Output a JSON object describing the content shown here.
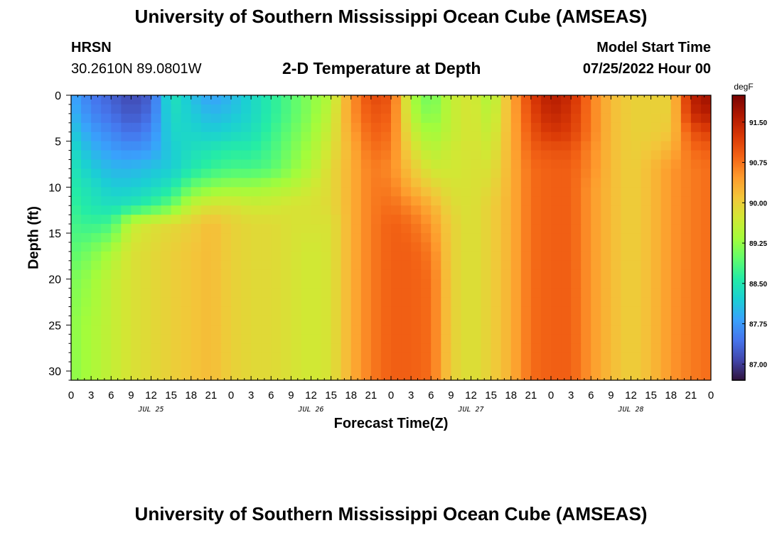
{
  "header": {
    "title": "University of Southern Mississippi Ocean Cube (AMSEAS)",
    "station": "HRSN",
    "coords": "30.2610N  89.0801W",
    "plot_title": "2-D Temperature at Depth",
    "model_start_label": "Model Start Time",
    "model_start_value": "07/25/2022 Hour 00"
  },
  "footer": {
    "title": "University of Southern Mississippi Ocean Cube (AMSEAS)"
  },
  "chart_data": {
    "type": "heatmap",
    "title": "2-D Temperature at Depth",
    "xlabel": "Forecast Time(Z)",
    "ylabel": "Depth (ft)",
    "x_units": "hours since 07/25/2022 00Z",
    "xlim": [
      0,
      96
    ],
    "ylim": [
      31,
      0
    ],
    "x_tick_values": [
      0,
      3,
      6,
      9,
      12,
      15,
      18,
      21,
      24,
      27,
      30,
      33,
      36,
      39,
      42,
      45,
      48,
      51,
      54,
      57,
      60,
      63,
      66,
      69,
      72,
      75,
      78,
      81,
      84,
      87,
      90,
      93,
      96
    ],
    "x_tick_labels": [
      "0",
      "3",
      "6",
      "9",
      "12",
      "15",
      "18",
      "21",
      "0",
      "3",
      "6",
      "9",
      "12",
      "15",
      "18",
      "21",
      "0",
      "3",
      "6",
      "9",
      "12",
      "15",
      "18",
      "21",
      "0",
      "3",
      "6",
      "9",
      "12",
      "15",
      "18",
      "21",
      "0"
    ],
    "day_labels": [
      {
        "label": "JUL 25",
        "hour": 12
      },
      {
        "label": "JUL 26",
        "hour": 36
      },
      {
        "label": "JUL 27",
        "hour": 60
      },
      {
        "label": "JUL 28",
        "hour": 84
      }
    ],
    "y_ticks": [
      0,
      5,
      10,
      15,
      20,
      25,
      30
    ],
    "colorbar": {
      "units": "degF",
      "min": 86.7,
      "max": 92.0,
      "ticks": [
        "91.50",
        "90.75",
        "90.00",
        "89.25",
        "88.50",
        "87.75",
        "87.00"
      ],
      "tick_values": [
        91.5,
        90.75,
        90.0,
        89.25,
        88.5,
        87.75,
        87.0
      ],
      "colors": [
        "#30123b",
        "#4145ab",
        "#4675ed",
        "#39a2fc",
        "#1bcfd4",
        "#24eca6",
        "#61fc6c",
        "#a4fc3b",
        "#d1e834",
        "#f3c63a",
        "#fe9b2d",
        "#f36315",
        "#d93806",
        "#b11901",
        "#7a0403"
      ]
    },
    "depths_ft": [
      0,
      2,
      4,
      6,
      8,
      10,
      12,
      14,
      17,
      20,
      25,
      31
    ],
    "times_h": [
      0,
      3,
      6,
      9,
      12,
      15,
      18,
      21,
      24,
      27,
      30,
      33,
      36,
      39,
      42,
      45,
      48,
      51,
      54,
      57,
      60,
      63,
      66,
      69,
      72,
      75,
      78,
      81,
      84,
      87,
      90,
      93,
      96
    ],
    "values_degF": [
      [
        87.9,
        87.5,
        87.3,
        87.1,
        87.3,
        88.5,
        88.1,
        87.8,
        88.0,
        88.3,
        88.6,
        88.9,
        89.2,
        89.5,
        90.5,
        91.1,
        91.0,
        89.4,
        89.0,
        89.6,
        89.8,
        89.4,
        90.3,
        91.2,
        91.6,
        91.4,
        90.7,
        90.2,
        90.0,
        90.0,
        90.0,
        91.5,
        91.8
      ],
      [
        88.0,
        87.6,
        87.4,
        87.2,
        87.4,
        88.4,
        88.2,
        88.0,
        88.1,
        88.3,
        88.6,
        88.9,
        89.2,
        89.6,
        90.5,
        91.0,
        90.9,
        89.5,
        89.1,
        89.6,
        89.8,
        89.5,
        90.3,
        91.1,
        91.5,
        91.3,
        90.7,
        90.2,
        90.0,
        90.0,
        90.0,
        91.4,
        91.6
      ],
      [
        88.2,
        87.8,
        87.6,
        87.4,
        87.6,
        88.3,
        88.3,
        88.2,
        88.3,
        88.4,
        88.7,
        89.0,
        89.3,
        89.7,
        90.4,
        90.9,
        90.8,
        89.7,
        89.3,
        89.6,
        89.8,
        89.6,
        90.3,
        91.0,
        91.3,
        91.2,
        90.7,
        90.2,
        90.0,
        90.0,
        90.1,
        91.0,
        91.2
      ],
      [
        88.4,
        88.0,
        87.8,
        87.7,
        87.8,
        88.2,
        88.4,
        88.5,
        88.6,
        88.6,
        88.8,
        89.1,
        89.4,
        89.8,
        90.3,
        90.8,
        90.7,
        89.9,
        89.5,
        89.7,
        89.8,
        89.7,
        90.3,
        90.9,
        91.0,
        91.0,
        90.6,
        90.2,
        90.0,
        90.1,
        90.3,
        90.8,
        90.9
      ],
      [
        88.5,
        88.2,
        88.0,
        88.0,
        88.1,
        88.2,
        88.5,
        88.7,
        88.8,
        88.8,
        88.9,
        89.2,
        89.5,
        89.9,
        90.3,
        90.7,
        90.6,
        90.1,
        89.7,
        89.7,
        89.8,
        89.8,
        90.3,
        90.8,
        90.9,
        90.9,
        90.6,
        90.2,
        90.0,
        90.2,
        90.5,
        90.7,
        90.8
      ],
      [
        88.6,
        88.4,
        88.2,
        88.2,
        88.3,
        88.5,
        89.0,
        89.2,
        89.3,
        89.3,
        89.4,
        89.5,
        89.7,
        89.9,
        90.3,
        90.7,
        90.7,
        90.3,
        90.0,
        89.8,
        89.8,
        89.9,
        90.3,
        90.8,
        90.9,
        90.9,
        90.5,
        90.2,
        90.0,
        90.2,
        90.5,
        90.7,
        90.8
      ],
      [
        88.7,
        88.5,
        88.4,
        88.5,
        88.7,
        89.0,
        89.6,
        89.8,
        89.8,
        89.7,
        89.7,
        89.8,
        89.8,
        89.9,
        90.3,
        90.7,
        90.8,
        90.6,
        90.3,
        89.9,
        89.8,
        90.0,
        90.3,
        90.8,
        90.9,
        90.9,
        90.5,
        90.2,
        90.0,
        90.2,
        90.5,
        90.7,
        90.8
      ],
      [
        88.8,
        88.7,
        88.8,
        89.6,
        89.8,
        89.9,
        90.0,
        90.2,
        90.0,
        89.9,
        89.9,
        89.8,
        89.8,
        89.8,
        90.3,
        90.7,
        90.9,
        90.8,
        90.5,
        90.0,
        89.8,
        90.0,
        90.3,
        90.8,
        90.9,
        90.9,
        90.5,
        90.2,
        90.0,
        90.2,
        90.5,
        90.7,
        90.8
      ],
      [
        88.9,
        89.1,
        89.4,
        89.8,
        89.9,
        90.0,
        90.1,
        90.2,
        90.0,
        89.9,
        89.9,
        89.8,
        89.7,
        89.8,
        90.3,
        90.7,
        90.9,
        90.9,
        90.7,
        90.0,
        89.8,
        90.0,
        90.3,
        90.8,
        90.9,
        90.9,
        90.5,
        90.2,
        90.0,
        90.2,
        90.5,
        90.7,
        90.8
      ],
      [
        89.1,
        89.3,
        89.6,
        89.8,
        89.9,
        90.0,
        90.1,
        90.2,
        90.0,
        89.9,
        89.9,
        89.8,
        89.7,
        89.8,
        90.3,
        90.7,
        90.9,
        90.9,
        90.8,
        90.0,
        89.8,
        90.0,
        90.3,
        90.8,
        90.9,
        90.9,
        90.5,
        90.2,
        90.0,
        90.2,
        90.5,
        90.7,
        90.8
      ],
      [
        89.2,
        89.4,
        89.6,
        89.8,
        89.9,
        90.0,
        90.1,
        90.2,
        90.0,
        89.9,
        89.9,
        89.8,
        89.7,
        89.8,
        90.3,
        90.7,
        90.9,
        90.9,
        90.8,
        90.0,
        89.8,
        90.0,
        90.3,
        90.8,
        90.9,
        90.9,
        90.5,
        90.2,
        90.0,
        90.2,
        90.5,
        90.7,
        90.8
      ],
      [
        89.2,
        89.4,
        89.6,
        89.8,
        89.9,
        90.0,
        90.1,
        90.2,
        90.0,
        89.9,
        89.9,
        89.8,
        89.7,
        89.8,
        90.3,
        90.7,
        90.9,
        90.9,
        90.8,
        90.0,
        89.8,
        90.0,
        90.3,
        90.8,
        90.9,
        90.9,
        90.5,
        90.2,
        90.0,
        90.2,
        90.5,
        90.7,
        90.8
      ]
    ]
  }
}
